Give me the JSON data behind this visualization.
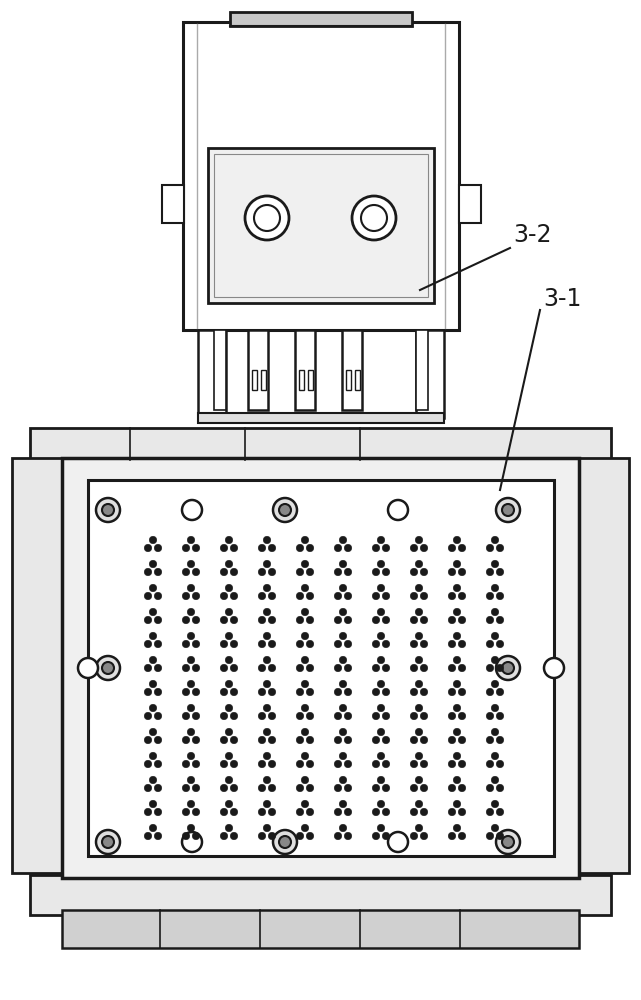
{
  "bg_color": "#ffffff",
  "line_color": "#1a1a1a",
  "label_32": "3-2",
  "label_31": "3-1",
  "figsize": [
    6.41,
    10.0
  ],
  "dpi": 100
}
